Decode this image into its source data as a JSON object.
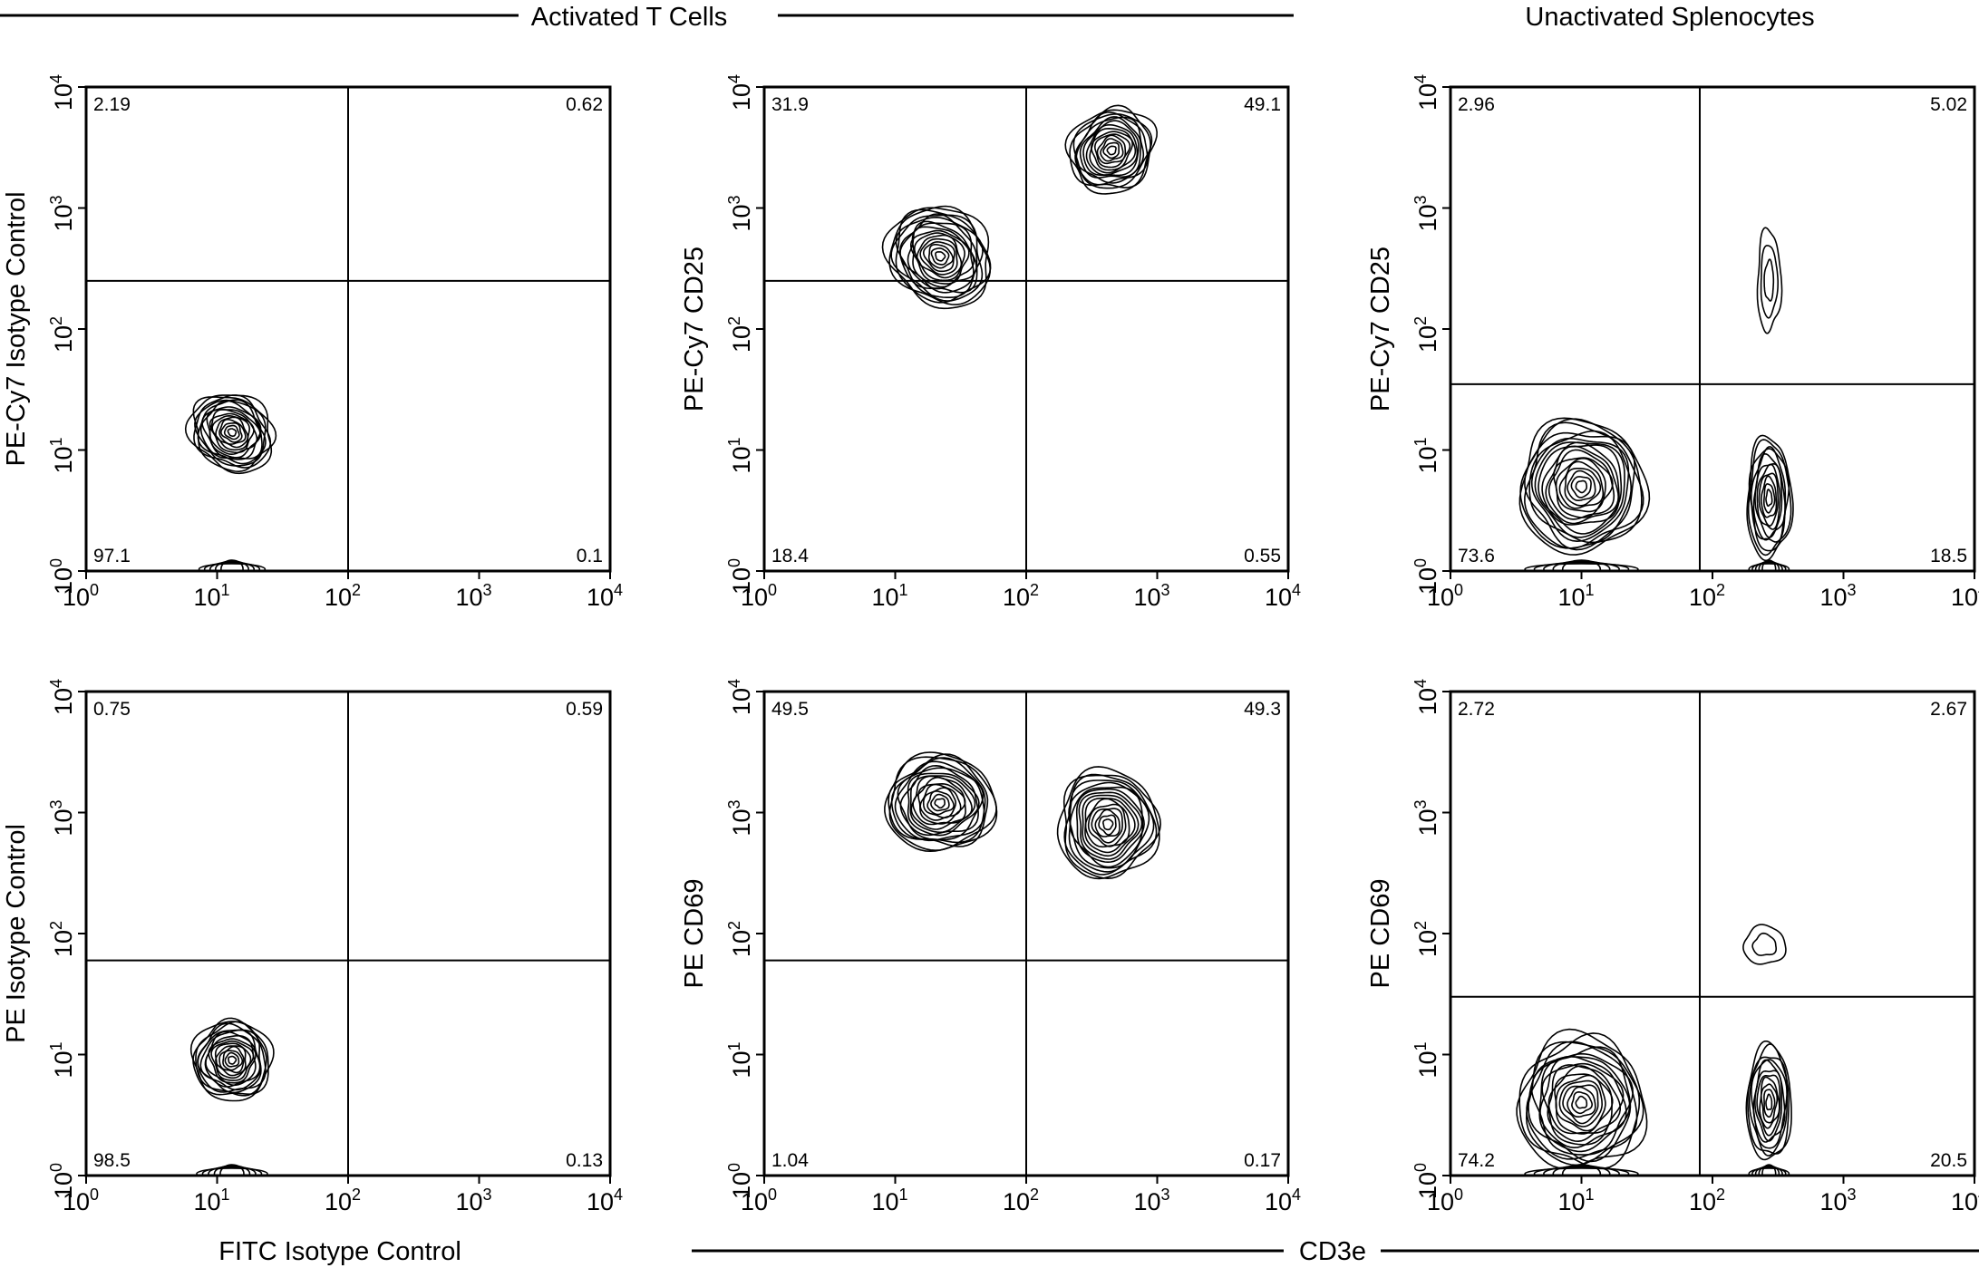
{
  "figure": {
    "header_left": "Activated T Cells",
    "header_right": "Unactivated Splenocytes",
    "footer_left": "FITC Isotype Control",
    "footer_center": "CD3e"
  },
  "axis": {
    "scale": "log",
    "range": [
      1,
      10000
    ],
    "ticks": [
      {
        "base": "10",
        "exp": "0"
      },
      {
        "base": "10",
        "exp": "1"
      },
      {
        "base": "10",
        "exp": "2"
      },
      {
        "base": "10",
        "exp": "3"
      },
      {
        "base": "10",
        "exp": "4"
      }
    ]
  },
  "chart_data": [
    {
      "type": "contour",
      "panel": "activated-top",
      "ylabel": "PE-Cy7 Isotype Control",
      "xlabel": "FITC Isotype Control",
      "xlim": [
        1,
        10000
      ],
      "ylim": [
        1,
        10000
      ],
      "gate": {
        "x": 100,
        "y": 250
      },
      "quadrants": {
        "upper_left": "2.19",
        "upper_right": "0.62",
        "lower_left": "97.1",
        "lower_right": "0.1"
      },
      "populations": [
        {
          "x": 13,
          "y": 14,
          "sx": 0.28,
          "sy": 0.36,
          "rot": 55,
          "levels": 16,
          "tail_y": 1
        }
      ]
    },
    {
      "type": "contour",
      "panel": "activated-top",
      "ylabel": "PE-Cy7 CD25",
      "xlabel": "CD3e",
      "xlim": [
        1,
        10000
      ],
      "ylim": [
        1,
        10000
      ],
      "gate": {
        "x": 100,
        "y": 250
      },
      "quadrants": {
        "upper_left": "31.9",
        "upper_right": "49.1",
        "lower_left": "18.4",
        "lower_right": "0.55"
      },
      "populations": [
        {
          "x": 22,
          "y": 400,
          "sx": 0.36,
          "sy": 0.45,
          "rot": 50,
          "levels": 17
        },
        {
          "x": 450,
          "y": 3000,
          "sx": 0.34,
          "sy": 0.33,
          "rot": 40,
          "levels": 15
        }
      ]
    },
    {
      "type": "contour",
      "panel": "unactivated-top",
      "ylabel": "PE-Cy7 CD25",
      "xlabel": "CD3e",
      "xlim": [
        1,
        10000
      ],
      "ylim": [
        1,
        10000
      ],
      "gate": {
        "x": 80,
        "y": 35
      },
      "quadrants": {
        "upper_left": "2.96",
        "upper_right": "5.02",
        "lower_left": "73.6",
        "lower_right": "18.5"
      },
      "populations": [
        {
          "x": 10,
          "y": 5,
          "sx": 0.48,
          "sy": 0.55,
          "rot": 0,
          "levels": 18,
          "tail_y": 1
        },
        {
          "x": 270,
          "y": 4,
          "sx": 0.17,
          "sy": 0.5,
          "rot": 0,
          "levels": 11,
          "tail_y": 1
        },
        {
          "x": 270,
          "y": 250,
          "sx": 0.09,
          "sy": 0.42,
          "rot": 0,
          "levels": 3
        }
      ]
    },
    {
      "type": "contour",
      "panel": "activated-bottom",
      "ylabel": "PE Isotype Control",
      "xlabel": "FITC Isotype Control",
      "xlim": [
        1,
        10000
      ],
      "ylim": [
        1,
        10000
      ],
      "gate": {
        "x": 100,
        "y": 60
      },
      "quadrants": {
        "upper_left": "0.75",
        "upper_right": "0.59",
        "lower_left": "98.5",
        "lower_right": "0.13"
      },
      "populations": [
        {
          "x": 13,
          "y": 9,
          "sx": 0.3,
          "sy": 0.33,
          "rot": 40,
          "levels": 16,
          "tail_y": 1
        }
      ]
    },
    {
      "type": "contour",
      "panel": "activated-bottom",
      "ylabel": "PE CD69",
      "xlabel": "CD3e",
      "xlim": [
        1,
        10000
      ],
      "ylim": [
        1,
        10000
      ],
      "gate": {
        "x": 100,
        "y": 60
      },
      "quadrants": {
        "upper_left": "49.5",
        "upper_right": "49.3",
        "lower_left": "1.04",
        "lower_right": "0.17"
      },
      "populations": [
        {
          "x": 22,
          "y": 1200,
          "sx": 0.42,
          "sy": 0.4,
          "rot": 0,
          "levels": 17
        },
        {
          "x": 420,
          "y": 800,
          "sx": 0.38,
          "sy": 0.45,
          "rot": 0,
          "levels": 16
        }
      ]
    },
    {
      "type": "contour",
      "panel": "unactivated-bottom",
      "ylabel": "PE CD69",
      "xlabel": "CD3e",
      "xlim": [
        1,
        10000
      ],
      "ylim": [
        1,
        10000
      ],
      "gate": {
        "x": 80,
        "y": 30
      },
      "quadrants": {
        "upper_left": "2.72",
        "upper_right": "2.67",
        "lower_left": "74.2",
        "lower_right": "20.5"
      },
      "populations": [
        {
          "x": 10,
          "y": 4,
          "sx": 0.48,
          "sy": 0.55,
          "rot": 0,
          "levels": 18,
          "tail_y": 1
        },
        {
          "x": 270,
          "y": 4,
          "sx": 0.17,
          "sy": 0.48,
          "rot": 0,
          "levels": 11,
          "tail_y": 1
        },
        {
          "x": 250,
          "y": 80,
          "sx": 0.16,
          "sy": 0.16,
          "rot": 0,
          "levels": 2
        }
      ]
    }
  ]
}
